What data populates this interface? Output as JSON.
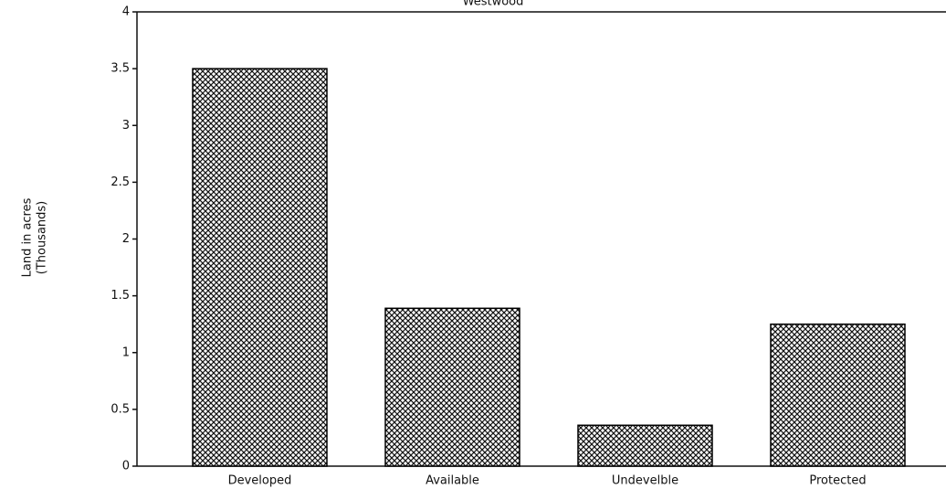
{
  "chart_data": {
    "type": "bar",
    "title": "Westwood",
    "y_label": [
      "Land in acres",
      "(Thousands)"
    ],
    "categories": [
      "Developed",
      "Available",
      "Undevelble",
      "Protected"
    ],
    "values": [
      3.5,
      1.39,
      0.36,
      1.25
    ],
    "color": "#000000",
    "ylim": [
      0,
      4
    ],
    "yticks": [
      0,
      0.5,
      1,
      1.5,
      2,
      2.5,
      3,
      3.5,
      4
    ],
    "grid": false
  }
}
